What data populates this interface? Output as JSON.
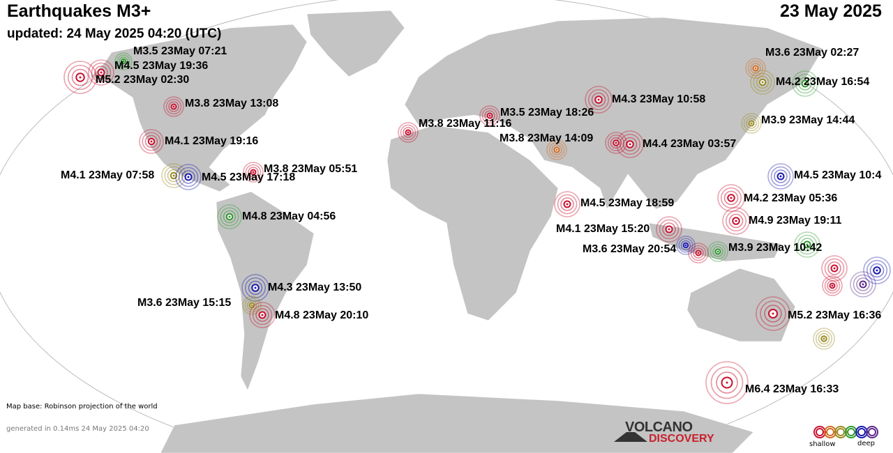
{
  "header": {
    "title": "Earthquakes M3+",
    "date": "23 May 2025",
    "updated": "updated: 24 May 2025 04:20 (UTC)"
  },
  "depth_colors": {
    "red": "#c8102e",
    "orange": "#d2691e",
    "olive": "#9a8a20",
    "green": "#2e9a2e",
    "blue": "#1a1ab0",
    "purple": "#5a2a8a"
  },
  "quakes": [
    {
      "label": "M3.5 23May 07:21",
      "depth": "green"
    },
    {
      "label": "M4.5 23May 19:36",
      "depth": "red"
    },
    {
      "label": "M5.2 23May 02:30",
      "depth": "red"
    },
    {
      "label": "M3.8 23May 13:08",
      "depth": "red"
    },
    {
      "label": "M4.1 23May 19:16",
      "depth": "red"
    },
    {
      "label": "M4.1 23May 07:58",
      "depth": "olive"
    },
    {
      "label": "M4.5 23May 17:18",
      "depth": "blue"
    },
    {
      "label": "M3.8 23May 05:51",
      "depth": "red"
    },
    {
      "label": "M4.8 23May 04:56",
      "depth": "green"
    },
    {
      "label": "M3.8 23May 11:16",
      "depth": "red"
    },
    {
      "label": "M3.5 23May 18:26",
      "depth": "red"
    },
    {
      "label": "M4.3 23May 10:58",
      "depth": "red"
    },
    {
      "label": "M3.8 23May 14:09",
      "depth": "orange"
    },
    {
      "label": "M4.4 23May 03:57",
      "depth": "red"
    },
    {
      "label": "M4.5 23May 18:59",
      "depth": "red"
    },
    {
      "label": "M4.1 23May 15:20",
      "depth": "red"
    },
    {
      "label": "M3.6 23May 20:54",
      "depth": "red"
    },
    {
      "label": "M3.9 23May 10:42",
      "depth": "green"
    },
    {
      "label": "M4.2 23May 05:36",
      "depth": "red"
    },
    {
      "label": "M4.9 23May 19:11",
      "depth": "red"
    },
    {
      "label": "M4.5 23May 10:4",
      "depth": "blue"
    },
    {
      "label": "M3.6 23May 02:27",
      "depth": "orange"
    },
    {
      "label": "M4.2 23May 16:54",
      "depth": "olive"
    },
    {
      "label": "M3.9 23May 14:44",
      "depth": "olive"
    },
    {
      "label": "M4.3 23May 13:50",
      "depth": "blue"
    },
    {
      "label": "M3.6 23May 15:15",
      "depth": "olive"
    },
    {
      "label": "M4.8 23May 20:10",
      "depth": "red"
    },
    {
      "label": "M5.2 23May 16:36",
      "depth": "red"
    },
    {
      "label": "M6.4 23May 16:33",
      "depth": "red"
    }
  ],
  "unlabeled_quakes": [
    {
      "depth": "red"
    },
    {
      "depth": "blue"
    },
    {
      "depth": "green"
    },
    {
      "depth": "red"
    },
    {
      "depth": "red"
    },
    {
      "depth": "purple"
    },
    {
      "depth": "blue"
    },
    {
      "depth": "olive"
    },
    {
      "depth": "green"
    }
  ],
  "footer": {
    "map_base": "Map base: Robinson projection of the world",
    "generated": "generated in 0.14ms 24 May 2025 04:20",
    "logo_line1": "VOLCANO",
    "logo_line2": "DISCOVERY",
    "legend_shallow": "shallow",
    "legend_deep": "deep"
  }
}
